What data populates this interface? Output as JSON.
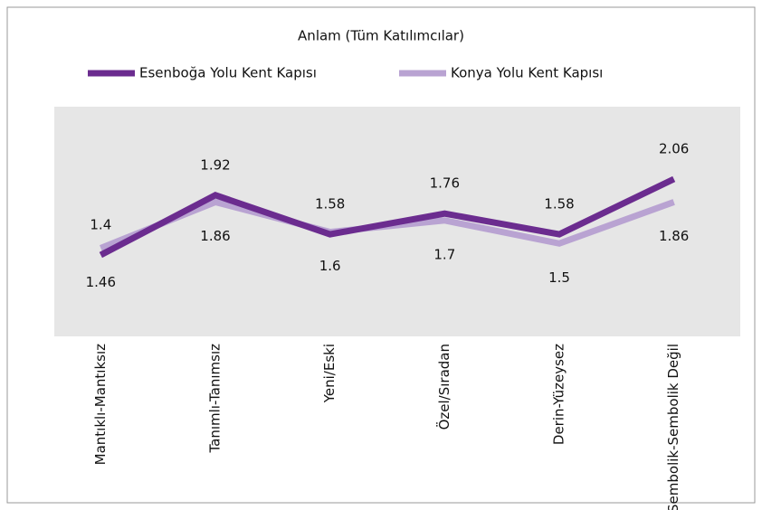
{
  "chart_data": {
    "type": "line",
    "title": "Anlam (Tüm Katılımcılar)",
    "categories": [
      "Mantıklı-Mantıksız",
      "Tanımlı-Tanımsız",
      "Yeni/Eski",
      "Özel/Sıradan",
      "Derin-Yüzeysez",
      "Sembolik-Sembolik Değil"
    ],
    "series": [
      {
        "name": "Esenboğa Yolu Kent Kapısı",
        "color": "#6b2c8f",
        "values": [
          1.4,
          1.92,
          1.58,
          1.76,
          1.58,
          2.06
        ]
      },
      {
        "name": "Konya Yolu Kent Kapısı",
        "color": "#b9a3d2",
        "values": [
          1.46,
          1.86,
          1.6,
          1.7,
          1.5,
          1.86
        ]
      }
    ],
    "legend": "top"
  }
}
